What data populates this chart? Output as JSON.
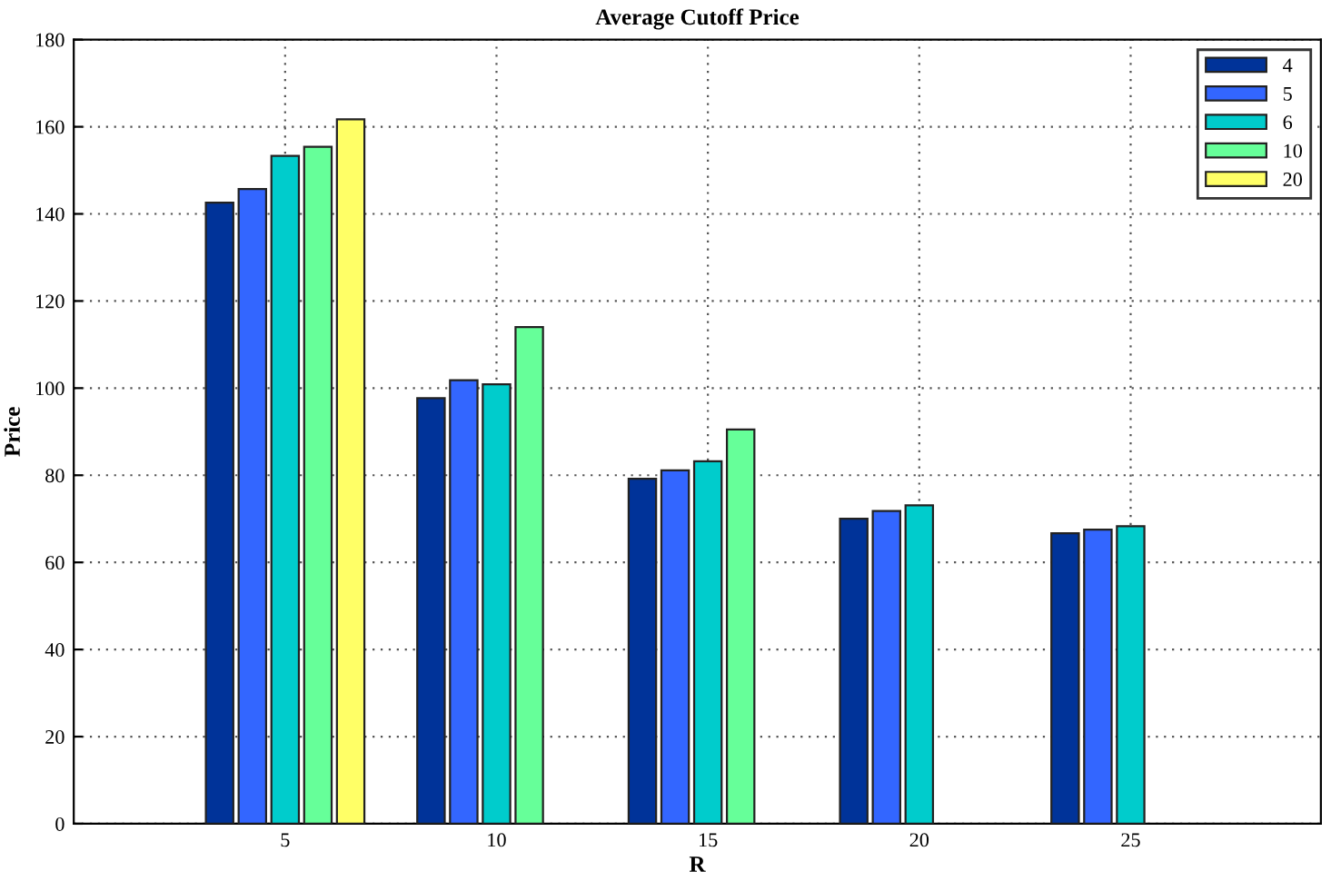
{
  "chart_data": {
    "type": "bar",
    "title": "Average Cutoff Price",
    "xlabel": "R",
    "ylabel": "Price",
    "categories": [
      "5",
      "10",
      "15",
      "20",
      "25"
    ],
    "series": [
      {
        "name": "4",
        "color": "#003399",
        "values": [
          142.6,
          97.7,
          79.2,
          70,
          66.7
        ]
      },
      {
        "name": "5",
        "color": "#3366ff",
        "values": [
          145.7,
          101.8,
          81.1,
          71.8,
          67.5
        ]
      },
      {
        "name": "6",
        "color": "#00cccc",
        "values": [
          153.3,
          100.9,
          83.2,
          73.1,
          68.3
        ]
      },
      {
        "name": "10",
        "color": "#66ff99",
        "values": [
          155.4,
          114.0,
          90.5,
          null,
          null
        ]
      },
      {
        "name": "20",
        "color": "#ffff66",
        "values": [
          161.7,
          null,
          null,
          null,
          null
        ]
      }
    ],
    "ylim": [
      0,
      180
    ],
    "yticks": [
      0,
      20,
      40,
      60,
      80,
      100,
      120,
      140,
      160,
      180
    ],
    "grid": true,
    "legend": "top right"
  }
}
